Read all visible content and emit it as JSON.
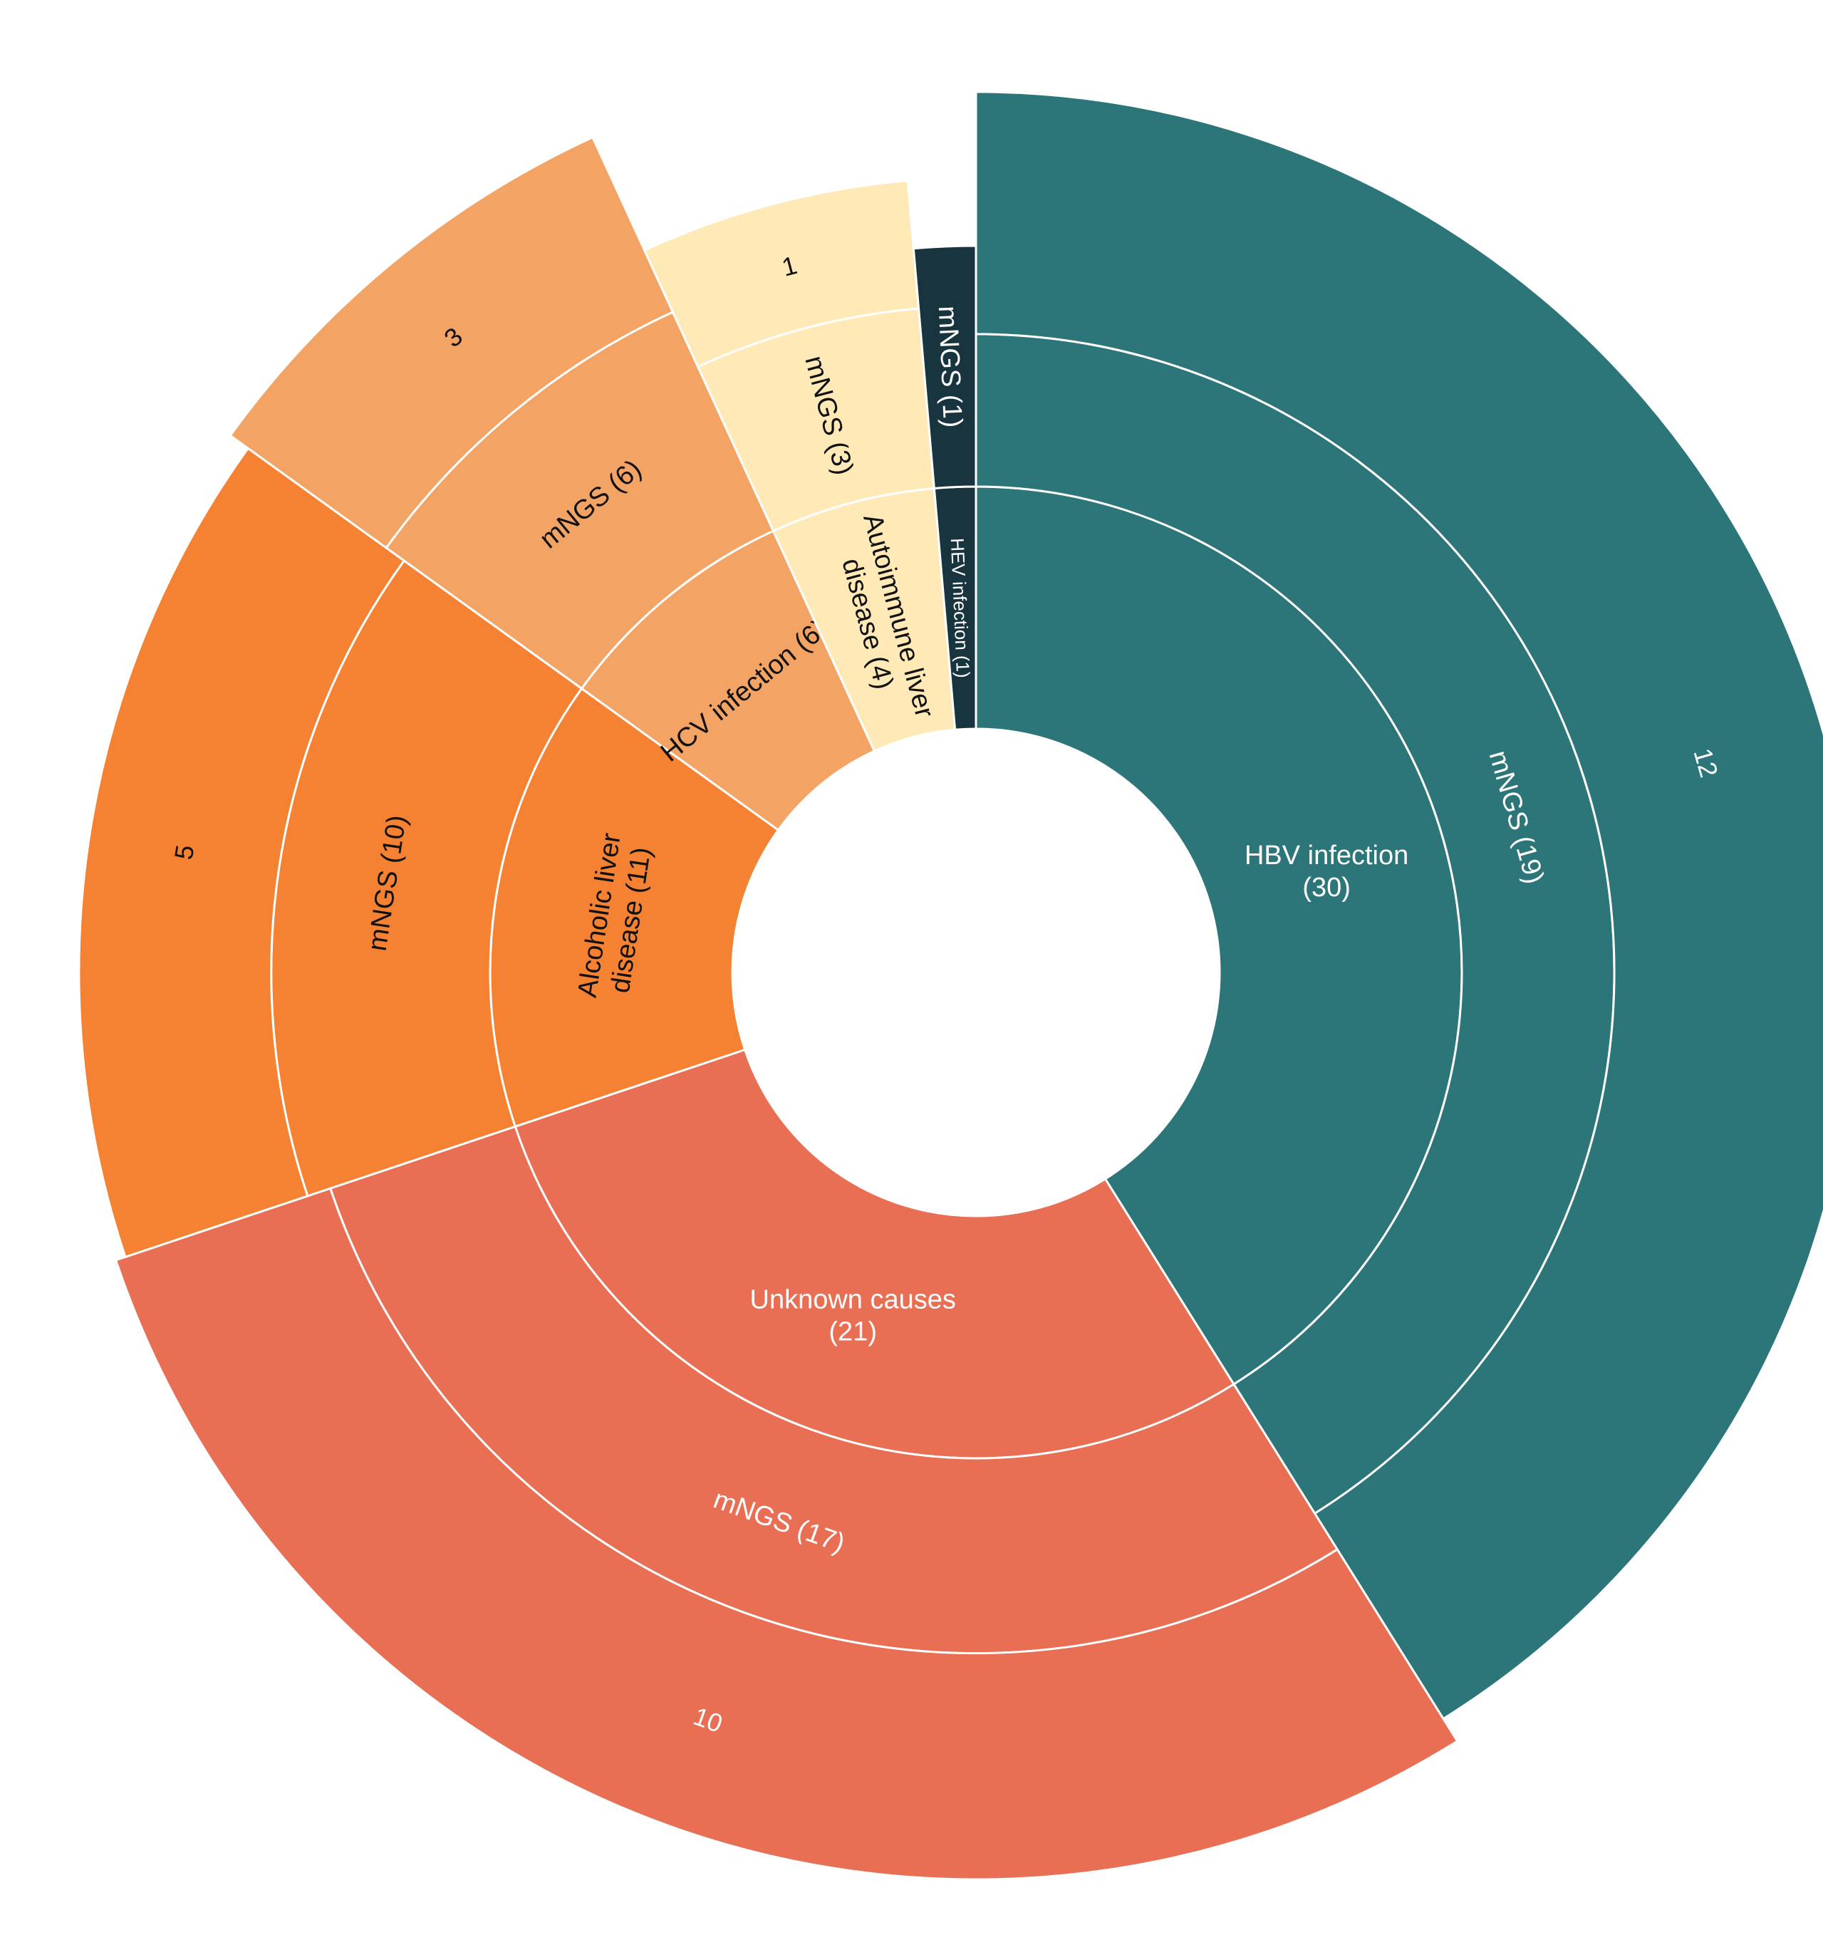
{
  "chart_data": {
    "type": "sunburst",
    "title": "",
    "center_label": "",
    "start_angle_deg": 0,
    "direction": "clockwise",
    "segments": [
      {
        "label": "HBV infection",
        "count": 30,
        "color": "#2C767A",
        "text_color": "#ffffff",
        "mngs": {
          "label": "mNGS",
          "count": 19
        },
        "positive": {
          "label": "12",
          "count": 12
        }
      },
      {
        "label": "Unknown causes",
        "count": 21,
        "color": "#E86E54",
        "text_color": "#ffffff",
        "mngs": {
          "label": "mNGS",
          "count": 17
        },
        "positive": {
          "label": "10",
          "count": 10
        }
      },
      {
        "label": "Alcoholic liver disease",
        "count": 11,
        "color": "#F58233",
        "text_color": "#111111",
        "mngs": {
          "label": "mNGS",
          "count": 10
        },
        "positive": {
          "label": "5",
          "count": 5
        }
      },
      {
        "label": "HCV infection",
        "count": 6,
        "color": "#F3A465",
        "text_color": "#111111",
        "mngs": {
          "label": "mNGS",
          "count": 6
        },
        "positive": {
          "label": "3",
          "count": 3
        }
      },
      {
        "label": "Autoimmune liver disease",
        "count": 4,
        "color": "#FEE9B7",
        "text_color": "#111111",
        "mngs": {
          "label": "mNGS",
          "count": 3
        },
        "positive": {
          "label": "1",
          "count": 1
        }
      },
      {
        "label": "HEV infection",
        "count": 1,
        "color": "#17343F",
        "text_color": "#ffffff",
        "mngs": {
          "label": "mNGS",
          "count": 1
        },
        "positive": null
      }
    ],
    "labels": {
      "inner": {
        "HBV infection": [
          "HBV infection",
          "(30)"
        ],
        "Unknown causes": [
          "Unknown causes",
          "(21)"
        ],
        "Alcoholic liver disease": [
          "Alcoholic liver",
          "disease (11)"
        ],
        "HCV infection": [
          "HCV infection (6)"
        ],
        "Autoimmune liver disease": [
          "Autoimmune liver",
          "disease (4)"
        ],
        "HEV infection": [
          "HEV infection (1)"
        ]
      },
      "middle": {
        "HBV infection": "mNGS (19)",
        "Unknown causes": "mNGS (17)",
        "Alcoholic liver disease": "mNGS (10)",
        "HCV infection": "mNGS (6)",
        "Autoimmune liver disease": "mNGS (3)",
        "HEV infection": "mNGS (1)"
      },
      "outer": {
        "HBV infection": "12",
        "Unknown causes": "10",
        "Alcoholic liver disease": "5",
        "HCV infection": "3",
        "Autoimmune liver disease": "1"
      }
    }
  }
}
